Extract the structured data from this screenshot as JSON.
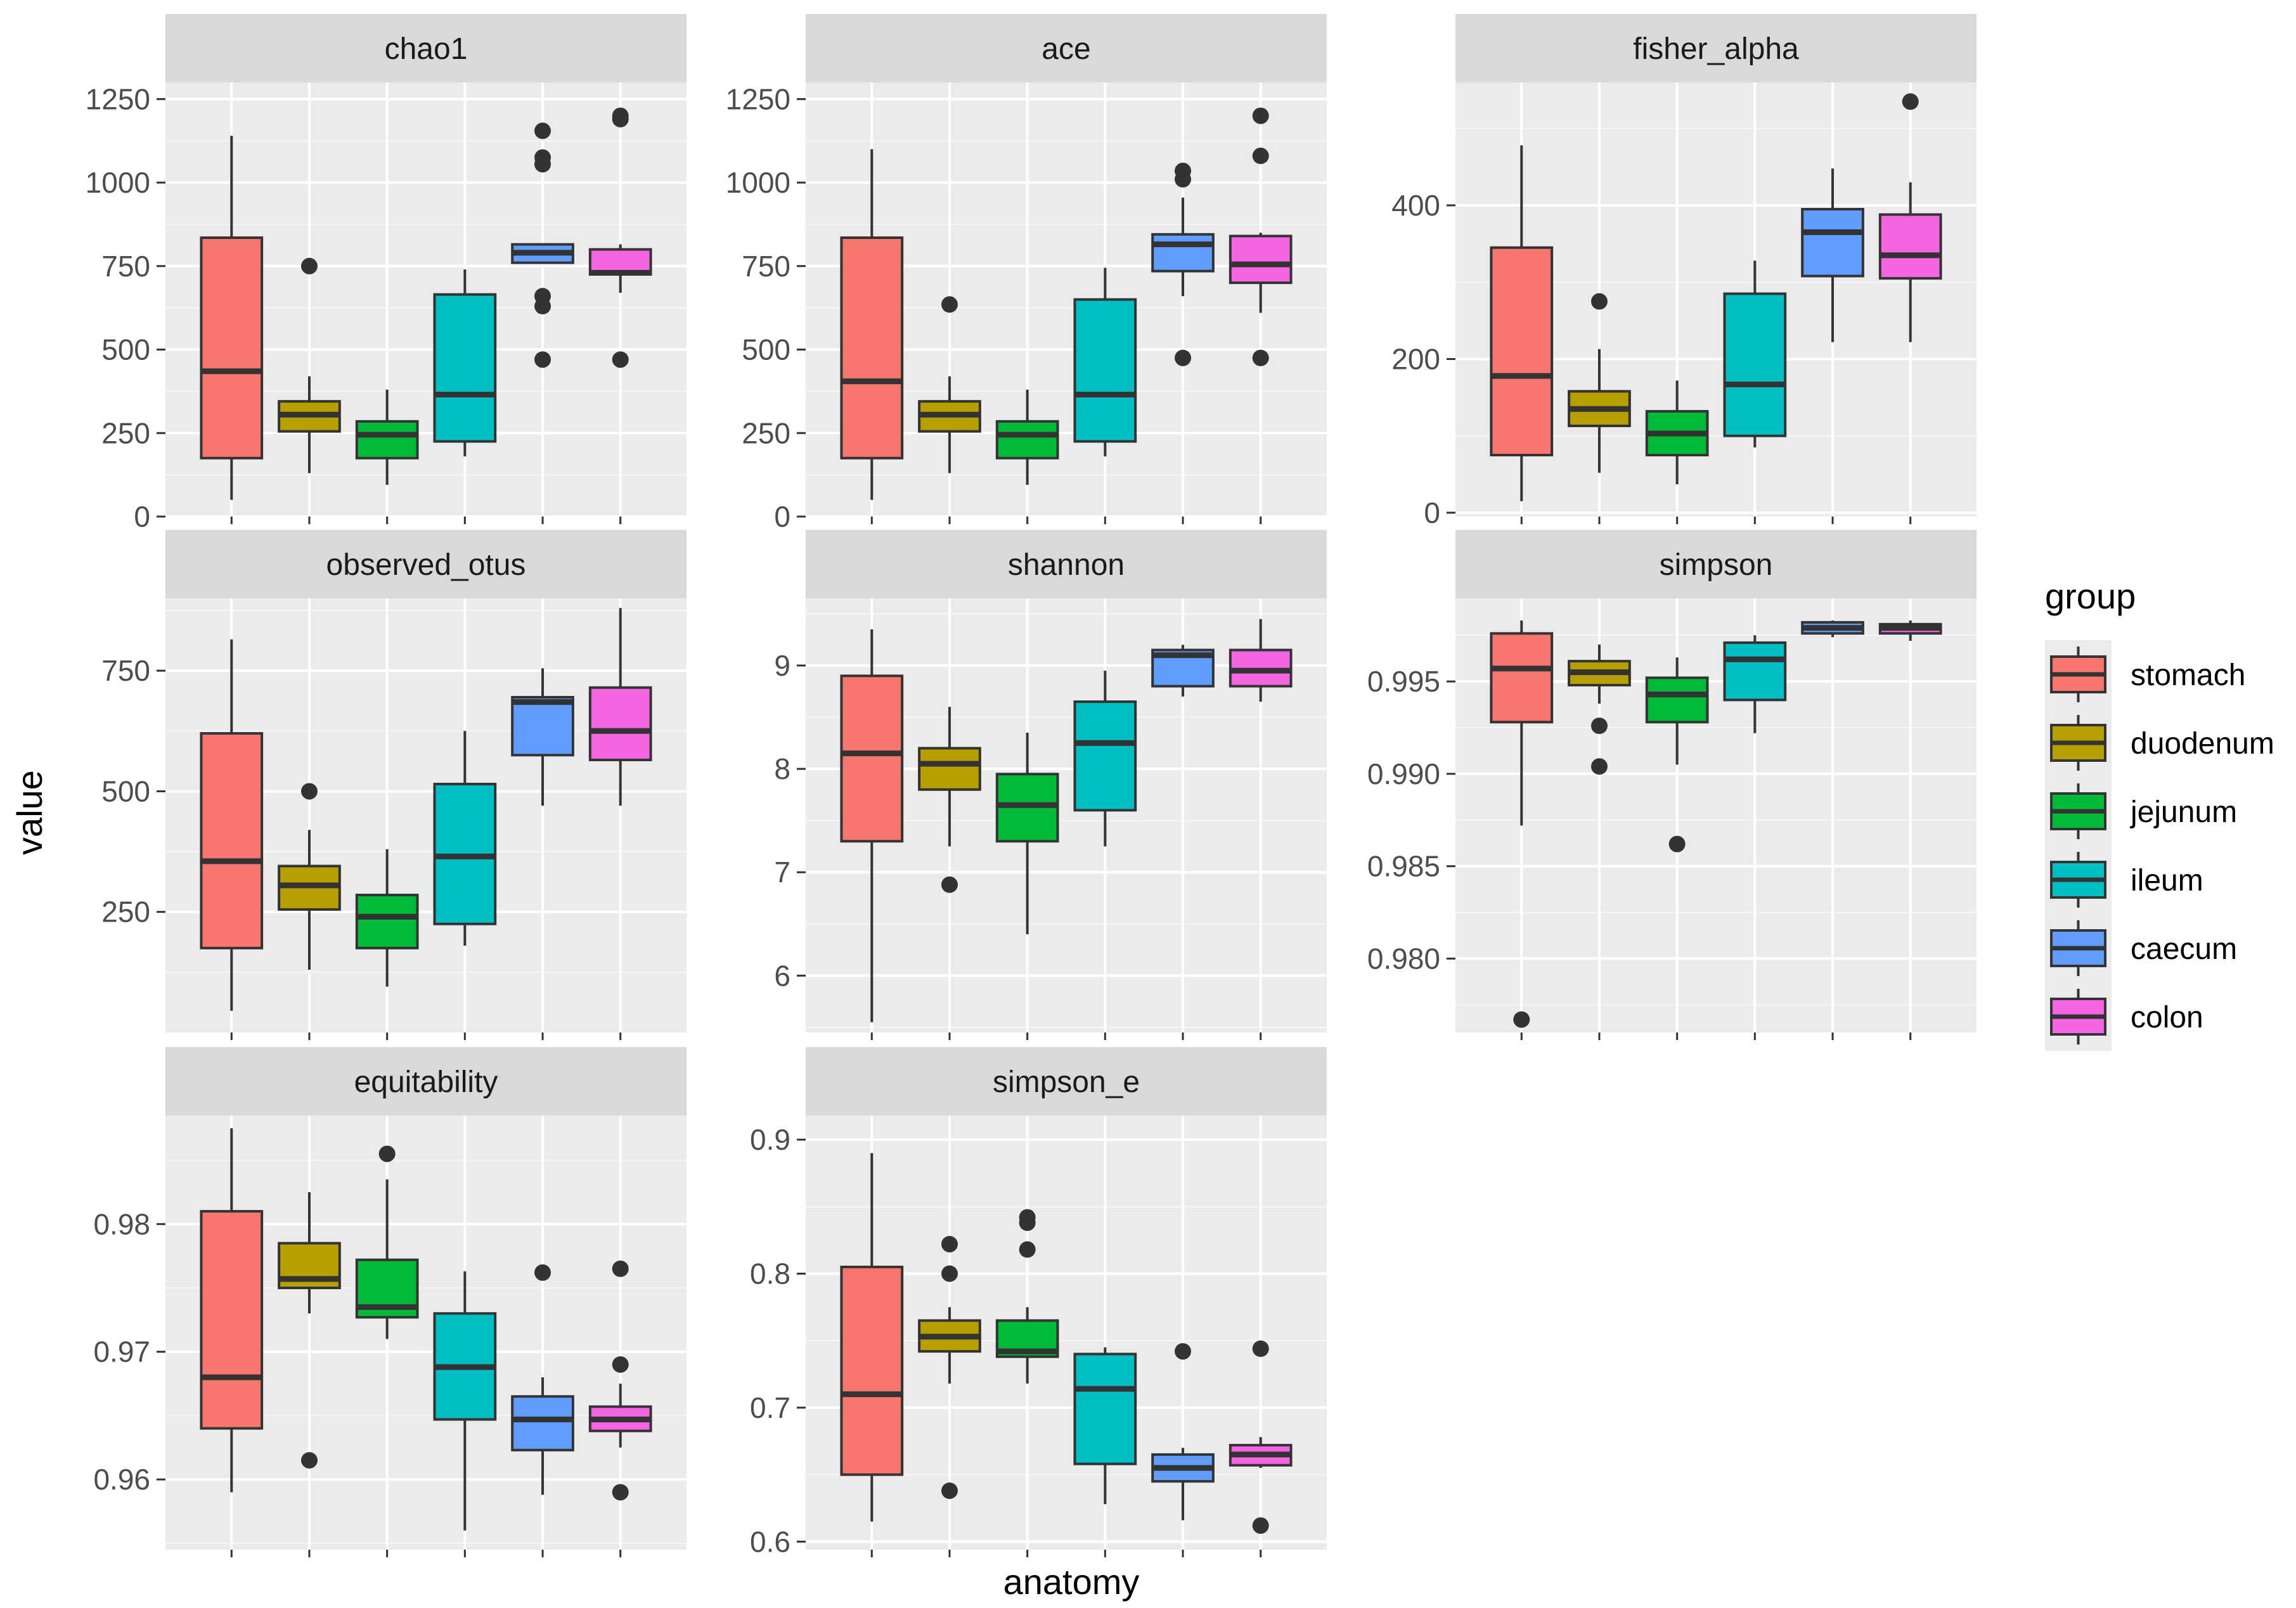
{
  "chart_data": {
    "type": "boxplot",
    "facet_layout": "3x3",
    "xlabel": "anatomy",
    "ylabel": "value",
    "legend": {
      "title": "group",
      "placement": "right",
      "entries": [
        "stomach",
        "duodenum",
        "jejunum",
        "ileum",
        "caecum",
        "colon"
      ]
    },
    "groups": [
      "stomach",
      "duodenum",
      "jejunum",
      "ileum",
      "caecum",
      "colon"
    ],
    "colors": {
      "stomach": "#F8766D",
      "duodenum": "#B79F00",
      "jejunum": "#00BA38",
      "ileum": "#00BFC4",
      "caecum": "#619CFF",
      "colon": "#F564E3",
      "panel_bg": "#EBEBEB",
      "strip_bg": "#D9D9D9",
      "grid": "#FFFFFF",
      "box_line": "#333333"
    },
    "grid": true,
    "panels": [
      {
        "title": "chao1",
        "ylim": [
          0,
          1300
        ],
        "yticks": [
          0,
          250,
          500,
          750,
          1000,
          1250
        ],
        "ytick_labels": [
          "0",
          "250",
          "500",
          "750",
          "1000",
          "1250"
        ],
        "boxes": [
          {
            "group": "stomach",
            "min": 50,
            "q1": 175,
            "median": 435,
            "q3": 835,
            "max": 1140,
            "outliers": []
          },
          {
            "group": "duodenum",
            "min": 130,
            "q1": 255,
            "median": 305,
            "q3": 345,
            "max": 420,
            "outliers": [
              750
            ]
          },
          {
            "group": "jejunum",
            "min": 95,
            "q1": 175,
            "median": 245,
            "q3": 285,
            "max": 380,
            "outliers": []
          },
          {
            "group": "ileum",
            "min": 180,
            "q1": 225,
            "median": 365,
            "q3": 665,
            "max": 740,
            "outliers": []
          },
          {
            "group": "caecum",
            "min": 760,
            "q1": 760,
            "median": 790,
            "q3": 815,
            "max": 815,
            "outliers": [
              470,
              630,
              660,
              1055,
              1075,
              1155
            ]
          },
          {
            "group": "colon",
            "min": 670,
            "q1": 725,
            "median": 730,
            "q3": 800,
            "max": 815,
            "outliers": [
              470,
              1190,
              1200
            ]
          }
        ]
      },
      {
        "title": "ace",
        "ylim": [
          0,
          1300
        ],
        "yticks": [
          0,
          250,
          500,
          750,
          1000,
          1250
        ],
        "ytick_labels": [
          "0",
          "250",
          "500",
          "750",
          "1000",
          "1250"
        ],
        "boxes": [
          {
            "group": "stomach",
            "min": 50,
            "q1": 175,
            "median": 405,
            "q3": 835,
            "max": 1100,
            "outliers": []
          },
          {
            "group": "duodenum",
            "min": 130,
            "q1": 255,
            "median": 305,
            "q3": 345,
            "max": 420,
            "outliers": [
              635
            ]
          },
          {
            "group": "jejunum",
            "min": 95,
            "q1": 175,
            "median": 245,
            "q3": 285,
            "max": 380,
            "outliers": []
          },
          {
            "group": "ileum",
            "min": 180,
            "q1": 225,
            "median": 365,
            "q3": 650,
            "max": 745,
            "outliers": []
          },
          {
            "group": "caecum",
            "min": 660,
            "q1": 735,
            "median": 815,
            "q3": 845,
            "max": 955,
            "outliers": [
              475,
              1010,
              1035
            ]
          },
          {
            "group": "colon",
            "min": 610,
            "q1": 700,
            "median": 755,
            "q3": 840,
            "max": 850,
            "outliers": [
              475,
              1080,
              1200
            ]
          }
        ]
      },
      {
        "title": "fisher_alpha",
        "ylim": [
          -5,
          560
        ],
        "yticks": [
          0,
          200,
          400
        ],
        "ytick_labels": [
          "0",
          "200",
          "400"
        ],
        "boxes": [
          {
            "group": "stomach",
            "min": 15,
            "q1": 75,
            "median": 178,
            "q3": 345,
            "max": 478,
            "outliers": []
          },
          {
            "group": "duodenum",
            "min": 52,
            "q1": 113,
            "median": 135,
            "q3": 158,
            "max": 213,
            "outliers": [
              275
            ]
          },
          {
            "group": "jejunum",
            "min": 37,
            "q1": 75,
            "median": 103,
            "q3": 132,
            "max": 172,
            "outliers": []
          },
          {
            "group": "ileum",
            "min": 85,
            "q1": 100,
            "median": 167,
            "q3": 285,
            "max": 328,
            "outliers": []
          },
          {
            "group": "caecum",
            "min": 222,
            "q1": 308,
            "median": 365,
            "q3": 395,
            "max": 448,
            "outliers": []
          },
          {
            "group": "colon",
            "min": 222,
            "q1": 305,
            "median": 335,
            "q3": 388,
            "max": 430,
            "outliers": [
              535
            ]
          }
        ]
      },
      {
        "title": "observed_otus",
        "ylim": [
          0,
          900
        ],
        "yticks": [
          250,
          500,
          750
        ],
        "ytick_labels": [
          "250",
          "500",
          "750"
        ],
        "boxes": [
          {
            "group": "stomach",
            "min": 45,
            "q1": 175,
            "median": 355,
            "q3": 620,
            "max": 815,
            "outliers": []
          },
          {
            "group": "duodenum",
            "min": 130,
            "q1": 255,
            "median": 305,
            "q3": 345,
            "max": 420,
            "outliers": [
              500
            ]
          },
          {
            "group": "jejunum",
            "min": 95,
            "q1": 175,
            "median": 240,
            "q3": 285,
            "max": 380,
            "outliers": []
          },
          {
            "group": "ileum",
            "min": 180,
            "q1": 225,
            "median": 365,
            "q3": 515,
            "max": 625,
            "outliers": []
          },
          {
            "group": "caecum",
            "min": 470,
            "q1": 575,
            "median": 685,
            "q3": 695,
            "max": 755,
            "outliers": []
          },
          {
            "group": "colon",
            "min": 470,
            "q1": 565,
            "median": 625,
            "q3": 715,
            "max": 880,
            "outliers": []
          }
        ]
      },
      {
        "title": "shannon",
        "ylim": [
          5.45,
          9.65
        ],
        "yticks": [
          6,
          7,
          8,
          9
        ],
        "ytick_labels": [
          "6",
          "7",
          "8",
          "9"
        ],
        "boxes": [
          {
            "group": "stomach",
            "min": 5.55,
            "q1": 7.3,
            "median": 8.15,
            "q3": 8.9,
            "max": 9.35,
            "outliers": []
          },
          {
            "group": "duodenum",
            "min": 7.25,
            "q1": 7.8,
            "median": 8.05,
            "q3": 8.2,
            "max": 8.6,
            "outliers": [
              6.88
            ]
          },
          {
            "group": "jejunum",
            "min": 6.4,
            "q1": 7.3,
            "median": 7.65,
            "q3": 7.95,
            "max": 8.35,
            "outliers": []
          },
          {
            "group": "ileum",
            "min": 7.25,
            "q1": 7.6,
            "median": 8.25,
            "q3": 8.65,
            "max": 8.95,
            "outliers": []
          },
          {
            "group": "caecum",
            "min": 8.7,
            "q1": 8.8,
            "median": 9.1,
            "q3": 9.15,
            "max": 9.2,
            "outliers": []
          },
          {
            "group": "colon",
            "min": 8.65,
            "q1": 8.8,
            "median": 8.95,
            "q3": 9.15,
            "max": 9.45,
            "outliers": []
          }
        ]
      },
      {
        "title": "simpson",
        "ylim": [
          0.976,
          0.9995
        ],
        "yticks": [
          0.98,
          0.985,
          0.99,
          0.995
        ],
        "ytick_labels": [
          "0.980",
          "0.985",
          "0.990",
          "0.995"
        ],
        "boxes": [
          {
            "group": "stomach",
            "min": 0.9872,
            "q1": 0.9928,
            "median": 0.9957,
            "q3": 0.9976,
            "max": 0.9983,
            "outliers": [
              0.9767
            ]
          },
          {
            "group": "duodenum",
            "min": 0.9938,
            "q1": 0.9948,
            "median": 0.9955,
            "q3": 0.9961,
            "max": 0.997,
            "outliers": [
              0.9926,
              0.9904
            ]
          },
          {
            "group": "jejunum",
            "min": 0.9905,
            "q1": 0.9928,
            "median": 0.9943,
            "q3": 0.9952,
            "max": 0.9963,
            "outliers": [
              0.9862
            ]
          },
          {
            "group": "ileum",
            "min": 0.9922,
            "q1": 0.994,
            "median": 0.9962,
            "q3": 0.9971,
            "max": 0.9975,
            "outliers": []
          },
          {
            "group": "caecum",
            "min": 0.9974,
            "q1": 0.9976,
            "median": 0.9979,
            "q3": 0.9982,
            "max": 0.9983,
            "outliers": []
          },
          {
            "group": "colon",
            "min": 0.9972,
            "q1": 0.9976,
            "median": 0.9979,
            "q3": 0.9981,
            "max": 0.9983,
            "outliers": []
          }
        ]
      },
      {
        "title": "equitability",
        "ylim": [
          0.9545,
          0.9885
        ],
        "yticks": [
          0.96,
          0.97,
          0.98
        ],
        "ytick_labels": [
          "0.96",
          "0.97",
          "0.98"
        ],
        "boxes": [
          {
            "group": "stomach",
            "min": 0.959,
            "q1": 0.964,
            "median": 0.968,
            "q3": 0.981,
            "max": 0.9875,
            "outliers": []
          },
          {
            "group": "duodenum",
            "min": 0.973,
            "q1": 0.975,
            "median": 0.9757,
            "q3": 0.9785,
            "max": 0.9825,
            "outliers": [
              0.9615
            ]
          },
          {
            "group": "jejunum",
            "min": 0.971,
            "q1": 0.9727,
            "median": 0.9735,
            "q3": 0.9772,
            "max": 0.9835,
            "outliers": [
              0.9855
            ]
          },
          {
            "group": "ileum",
            "min": 0.956,
            "q1": 0.9647,
            "median": 0.9688,
            "q3": 0.973,
            "max": 0.9763,
            "outliers": []
          },
          {
            "group": "caecum",
            "min": 0.9588,
            "q1": 0.9623,
            "median": 0.9647,
            "q3": 0.9665,
            "max": 0.968,
            "outliers": [
              0.9762
            ]
          },
          {
            "group": "colon",
            "min": 0.9625,
            "q1": 0.9638,
            "median": 0.9647,
            "q3": 0.9657,
            "max": 0.9675,
            "outliers": [
              0.9765,
              0.969,
              0.959
            ]
          }
        ]
      },
      {
        "title": "simpson_e",
        "ylim": [
          0.594,
          0.918
        ],
        "yticks": [
          0.6,
          0.7,
          0.8,
          0.9
        ],
        "ytick_labels": [
          "0.6",
          "0.7",
          "0.8",
          "0.9"
        ],
        "boxes": [
          {
            "group": "stomach",
            "min": 0.615,
            "q1": 0.65,
            "median": 0.71,
            "q3": 0.805,
            "max": 0.89,
            "outliers": []
          },
          {
            "group": "duodenum",
            "min": 0.718,
            "q1": 0.742,
            "median": 0.753,
            "q3": 0.765,
            "max": 0.775,
            "outliers": [
              0.822,
              0.8,
              0.638
            ]
          },
          {
            "group": "jejunum",
            "min": 0.718,
            "q1": 0.738,
            "median": 0.742,
            "q3": 0.765,
            "max": 0.775,
            "outliers": [
              0.842,
              0.838,
              0.818
            ]
          },
          {
            "group": "ileum",
            "min": 0.628,
            "q1": 0.658,
            "median": 0.714,
            "q3": 0.74,
            "max": 0.745,
            "outliers": []
          },
          {
            "group": "caecum",
            "min": 0.616,
            "q1": 0.645,
            "median": 0.655,
            "q3": 0.665,
            "max": 0.67,
            "outliers": [
              0.742
            ]
          },
          {
            "group": "colon",
            "min": 0.655,
            "q1": 0.657,
            "median": 0.665,
            "q3": 0.672,
            "max": 0.678,
            "outliers": [
              0.744,
              0.612
            ]
          }
        ]
      }
    ]
  }
}
